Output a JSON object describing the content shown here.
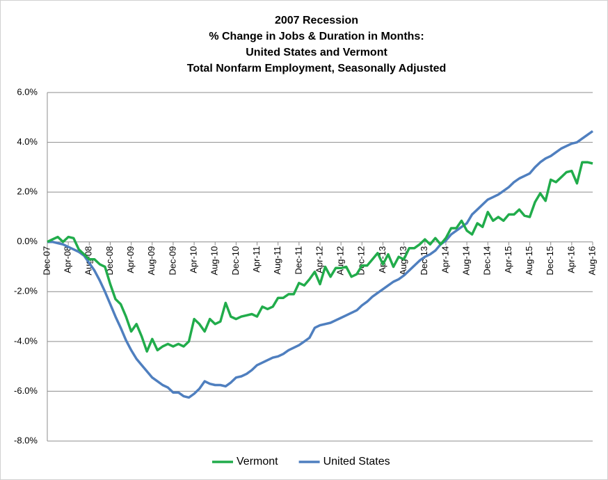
{
  "chart_data": {
    "type": "line",
    "title": [
      "2007 Recession",
      "% Change in Jobs & Duration in Months:",
      "United States and Vermont",
      "Total Nonfarm Employment, Seasonally Adjusted"
    ],
    "categories": [
      "Dec-07",
      null,
      null,
      null,
      "Apr-08",
      null,
      null,
      null,
      "Aug-08",
      null,
      null,
      null,
      "Dec-08",
      null,
      null,
      null,
      "Apr-09",
      null,
      null,
      null,
      "Aug-09",
      null,
      null,
      null,
      "Dec-09",
      null,
      null,
      null,
      "Apr-10",
      null,
      null,
      null,
      "Aug-10",
      null,
      null,
      null,
      "Dec-10",
      null,
      null,
      null,
      "Apr-11",
      null,
      null,
      null,
      "Aug-11",
      null,
      null,
      null,
      "Dec-11",
      null,
      null,
      null,
      "Apr-12",
      null,
      null,
      null,
      "Aug-12",
      null,
      null,
      null,
      "Dec-12",
      null,
      null,
      null,
      "Apr-13",
      null,
      null,
      null,
      "Aug-13",
      null,
      null,
      null,
      "Dec-13",
      null,
      null,
      null,
      "Apr-14",
      null,
      null,
      null,
      "Aug-14",
      null,
      null,
      null,
      "Dec-14",
      null,
      null,
      null,
      "Apr-15",
      null,
      null,
      null,
      "Aug-15",
      null,
      null,
      null,
      "Dec-15",
      null,
      null,
      null,
      "Apr-16",
      null,
      null,
      null,
      "Aug-16"
    ],
    "series": [
      {
        "name": "Vermont",
        "color": "#21ac4b",
        "values": [
          0,
          0.1,
          0.2,
          0.0,
          0.2,
          0.15,
          -0.3,
          -0.5,
          -0.7,
          -0.7,
          -0.9,
          -1.0,
          -1.7,
          -2.3,
          -2.5,
          -3.0,
          -3.6,
          -3.3,
          -3.8,
          -4.4,
          -3.9,
          -4.35,
          -4.2,
          -4.1,
          -4.2,
          -4.1,
          -4.2,
          -4.0,
          -3.1,
          -3.3,
          -3.6,
          -3.1,
          -3.3,
          -3.2,
          -2.45,
          -3.0,
          -3.1,
          -3.0,
          -2.95,
          -2.9,
          -3.0,
          -2.6,
          -2.7,
          -2.6,
          -2.25,
          -2.25,
          -2.1,
          -2.1,
          -1.65,
          -1.75,
          -1.5,
          -1.2,
          -1.7,
          -1.0,
          -1.4,
          -1.05,
          -1.05,
          -1.0,
          -1.4,
          -1.3,
          -0.95,
          -0.95,
          -0.7,
          -0.45,
          -0.9,
          -0.5,
          -1.0,
          -0.6,
          -0.7,
          -0.25,
          -0.25,
          -0.1,
          0.1,
          -0.1,
          0.15,
          -0.1,
          0.15,
          0.55,
          0.55,
          0.85,
          0.45,
          0.3,
          0.75,
          0.6,
          1.2,
          0.85,
          1.0,
          0.85,
          1.1,
          1.1,
          1.3,
          1.05,
          1.0,
          1.6,
          1.95,
          1.65,
          2.5,
          2.4,
          2.6,
          2.8,
          2.85,
          2.35,
          3.2,
          3.2,
          3.15
        ]
      },
      {
        "name": "United States",
        "color": "#4f7fbf",
        "values": [
          0,
          0,
          -0.05,
          -0.1,
          -0.2,
          -0.3,
          -0.4,
          -0.55,
          -0.85,
          -1.15,
          -1.55,
          -2.0,
          -2.5,
          -3.0,
          -3.45,
          -3.95,
          -4.35,
          -4.7,
          -4.95,
          -5.2,
          -5.45,
          -5.6,
          -5.75,
          -5.85,
          -6.05,
          -6.05,
          -6.2,
          -6.25,
          -6.1,
          -5.9,
          -5.6,
          -5.7,
          -5.75,
          -5.75,
          -5.8,
          -5.65,
          -5.45,
          -5.4,
          -5.3,
          -5.15,
          -4.95,
          -4.85,
          -4.75,
          -4.65,
          -4.6,
          -4.5,
          -4.35,
          -4.25,
          -4.15,
          -4.0,
          -3.85,
          -3.45,
          -3.35,
          -3.3,
          -3.25,
          -3.15,
          -3.05,
          -2.95,
          -2.85,
          -2.75,
          -2.55,
          -2.4,
          -2.2,
          -2.05,
          -1.9,
          -1.75,
          -1.6,
          -1.5,
          -1.35,
          -1.15,
          -0.95,
          -0.75,
          -0.6,
          -0.5,
          -0.35,
          -0.1,
          0.05,
          0.3,
          0.45,
          0.6,
          0.75,
          1.1,
          1.3,
          1.5,
          1.7,
          1.8,
          1.9,
          2.05,
          2.2,
          2.4,
          2.55,
          2.65,
          2.75,
          3.0,
          3.2,
          3.35,
          3.45,
          3.6,
          3.75,
          3.85,
          3.95,
          4.0,
          4.15,
          4.3,
          4.45
        ]
      }
    ],
    "ylim": [
      -8,
      6
    ],
    "yticks": [
      {
        "value": -8,
        "label": "-8.0%"
      },
      {
        "value": -6,
        "label": "-6.0%"
      },
      {
        "value": -4,
        "label": "-4.0%"
      },
      {
        "value": -2,
        "label": "-2.0%"
      },
      {
        "value": 0,
        "label": "0.0%"
      },
      {
        "value": 2,
        "label": "2.0%"
      },
      {
        "value": 4,
        "label": "4.0%"
      },
      {
        "value": 6,
        "label": "6.0%"
      }
    ],
    "grid": true,
    "legend": "bottom"
  }
}
